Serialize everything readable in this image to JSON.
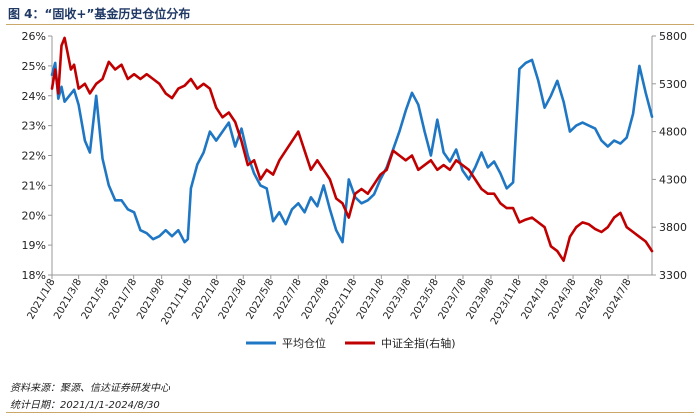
{
  "header": {
    "title": "图 4：“固收+”基金历史仓位分布"
  },
  "footer": {
    "source": "资料来源：聚源、信达证券研发中心",
    "date_range": "统计日期：2021/1/1-2024/8/30"
  },
  "colors": {
    "avg_position": "#1f77c4",
    "csi_all": "#c00000"
  },
  "chart_data": {
    "type": "line",
    "x_ticks": [
      "2021/1/8",
      "2021/3/8",
      "2021/5/8",
      "2021/7/8",
      "2021/9/8",
      "2021/11/8",
      "2022/1/8",
      "2022/3/8",
      "2022/5/8",
      "2022/7/8",
      "2022/9/8",
      "2022/11/8",
      "2023/1/8",
      "2023/3/8",
      "2023/5/8",
      "2023/7/8",
      "2023/9/8",
      "2023/11/8",
      "2024/1/8",
      "2024/3/8",
      "2024/5/8",
      "2024/7/8"
    ],
    "y_left": {
      "ticks": [
        "26%",
        "25%",
        "24%",
        "23%",
        "22%",
        "21%",
        "20%",
        "19%",
        "18%"
      ],
      "range": [
        18,
        26
      ],
      "unit": "%"
    },
    "y_right": {
      "ticks": [
        "5800",
        "5300",
        "4800",
        "4300",
        "3800",
        "3300"
      ],
      "range": [
        3300,
        5800
      ]
    },
    "legend": [
      "平均仓位",
      "中证全指(右轴)"
    ],
    "legend_position": "bottom",
    "grid": false,
    "series": [
      {
        "name": "平均仓位",
        "axis": "left",
        "x": [
          "2021/1/8",
          "2021/1/15",
          "2021/1/22",
          "2021/1/29",
          "2021/2/5",
          "2021/2/26",
          "2021/3/8",
          "2021/3/22",
          "2021/4/2",
          "2021/4/16",
          "2021/4/30",
          "2021/5/14",
          "2021/5/28",
          "2021/6/11",
          "2021/6/25",
          "2021/7/9",
          "2021/7/23",
          "2021/8/6",
          "2021/8/20",
          "2021/9/3",
          "2021/9/17",
          "2021/10/1",
          "2021/10/15",
          "2021/10/29",
          "2021/11/5",
          "2021/11/12",
          "2021/11/26",
          "2021/12/10",
          "2021/12/24",
          "2022/1/7",
          "2022/1/21",
          "2022/2/4",
          "2022/2/18",
          "2022/3/4",
          "2022/3/18",
          "2022/4/1",
          "2022/4/15",
          "2022/4/29",
          "2022/5/13",
          "2022/5/27",
          "2022/6/10",
          "2022/6/24",
          "2022/7/8",
          "2022/7/22",
          "2022/8/5",
          "2022/8/19",
          "2022/9/2",
          "2022/9/16",
          "2022/9/30",
          "2022/10/14",
          "2022/10/28",
          "2022/11/11",
          "2022/11/25",
          "2022/12/9",
          "2022/12/23",
          "2023/1/6",
          "2023/1/20",
          "2023/2/3",
          "2023/2/17",
          "2023/3/3",
          "2023/3/17",
          "2023/3/31",
          "2023/4/14",
          "2023/4/28",
          "2023/5/12",
          "2023/5/26",
          "2023/6/9",
          "2023/6/23",
          "2023/7/7",
          "2023/7/21",
          "2023/8/4",
          "2023/8/18",
          "2023/9/1",
          "2023/9/15",
          "2023/9/29",
          "2023/10/13",
          "2023/10/27",
          "2023/11/10",
          "2023/11/24",
          "2023/12/8",
          "2023/12/22",
          "2024/1/5",
          "2024/1/19",
          "2024/2/2",
          "2024/2/16",
          "2024/3/1",
          "2024/3/15",
          "2024/3/29",
          "2024/4/12",
          "2024/4/26",
          "2024/5/10",
          "2024/5/24",
          "2024/6/7",
          "2024/6/21",
          "2024/7/5",
          "2024/7/19",
          "2024/8/2",
          "2024/8/16",
          "2024/8/30"
        ],
        "values": [
          24.7,
          25.1,
          23.9,
          24.3,
          23.8,
          24.2,
          23.7,
          22.5,
          22.1,
          24.0,
          21.9,
          21.0,
          20.5,
          20.5,
          20.2,
          20.1,
          19.5,
          19.4,
          19.2,
          19.3,
          19.5,
          19.3,
          19.5,
          19.1,
          19.2,
          20.9,
          21.7,
          22.1,
          22.8,
          22.5,
          22.8,
          23.1,
          22.3,
          22.9,
          22.0,
          21.4,
          21.0,
          20.9,
          19.8,
          20.1,
          19.7,
          20.2,
          20.4,
          20.1,
          20.6,
          20.3,
          21.0,
          20.2,
          19.5,
          19.1,
          21.2,
          20.6,
          20.4,
          20.5,
          20.7,
          21.2,
          21.6,
          22.2,
          22.8,
          23.5,
          24.1,
          23.7,
          22.8,
          22.0,
          23.2,
          22.1,
          21.8,
          22.2,
          21.5,
          21.2,
          21.6,
          22.1,
          21.6,
          21.8,
          21.4,
          20.9,
          21.1,
          24.9,
          25.1,
          25.2,
          24.5,
          23.6,
          24.0,
          24.5,
          23.8,
          22.8,
          23.0,
          23.1,
          23.0,
          22.9,
          22.5,
          22.3,
          22.5,
          22.4,
          22.6,
          23.4,
          25.0,
          24.1,
          23.3
        ]
      },
      {
        "name": "中证全指(右轴)",
        "axis": "right",
        "x": [
          "2021/1/8",
          "2021/1/15",
          "2021/1/22",
          "2021/1/29",
          "2021/2/5",
          "2021/2/19",
          "2021/2/26",
          "2021/3/8",
          "2021/3/22",
          "2021/4/2",
          "2021/4/16",
          "2021/4/30",
          "2021/5/14",
          "2021/5/28",
          "2021/6/11",
          "2021/6/25",
          "2021/7/9",
          "2021/7/23",
          "2021/8/6",
          "2021/8/20",
          "2021/9/3",
          "2021/9/17",
          "2021/10/1",
          "2021/10/15",
          "2021/10/29",
          "2021/11/12",
          "2021/11/26",
          "2021/12/10",
          "2021/12/24",
          "2022/1/7",
          "2022/1/21",
          "2022/2/4",
          "2022/2/18",
          "2022/3/4",
          "2022/3/18",
          "2022/4/1",
          "2022/4/15",
          "2022/4/29",
          "2022/5/13",
          "2022/5/27",
          "2022/6/10",
          "2022/6/24",
          "2022/7/8",
          "2022/7/22",
          "2022/8/5",
          "2022/8/19",
          "2022/9/2",
          "2022/9/16",
          "2022/9/30",
          "2022/10/14",
          "2022/10/28",
          "2022/11/11",
          "2022/11/25",
          "2022/12/9",
          "2022/12/23",
          "2023/1/6",
          "2023/1/20",
          "2023/2/3",
          "2023/2/17",
          "2023/3/3",
          "2023/3/17",
          "2023/3/31",
          "2023/4/14",
          "2023/4/28",
          "2023/5/12",
          "2023/5/26",
          "2023/6/9",
          "2023/6/23",
          "2023/7/7",
          "2023/7/21",
          "2023/8/4",
          "2023/8/18",
          "2023/9/1",
          "2023/9/15",
          "2023/9/29",
          "2023/10/13",
          "2023/10/27",
          "2023/11/10",
          "2023/11/24",
          "2023/12/8",
          "2023/12/22",
          "2024/1/5",
          "2024/1/19",
          "2024/2/2",
          "2024/2/16",
          "2024/3/1",
          "2024/3/15",
          "2024/3/29",
          "2024/4/12",
          "2024/4/26",
          "2024/5/10",
          "2024/5/24",
          "2024/6/7",
          "2024/6/21",
          "2024/7/5",
          "2024/7/19",
          "2024/8/2",
          "2024/8/16",
          "2024/8/30"
        ],
        "values": [
          5250,
          5450,
          5200,
          5700,
          5780,
          5450,
          5500,
          5250,
          5300,
          5200,
          5300,
          5350,
          5530,
          5450,
          5500,
          5350,
          5400,
          5350,
          5400,
          5350,
          5300,
          5200,
          5150,
          5250,
          5280,
          5350,
          5250,
          5300,
          5250,
          5050,
          4950,
          5000,
          4900,
          4700,
          4450,
          4500,
          4300,
          4400,
          4350,
          4500,
          4600,
          4700,
          4800,
          4600,
          4400,
          4500,
          4400,
          4300,
          4100,
          4050,
          3900,
          4150,
          4200,
          4150,
          4250,
          4350,
          4400,
          4600,
          4550,
          4500,
          4550,
          4400,
          4450,
          4500,
          4400,
          4450,
          4400,
          4500,
          4450,
          4400,
          4300,
          4200,
          4150,
          4150,
          4050,
          4000,
          4000,
          3850,
          3880,
          3900,
          3850,
          3800,
          3600,
          3550,
          3450,
          3700,
          3800,
          3850,
          3830,
          3780,
          3750,
          3800,
          3900,
          3950,
          3800,
          3750,
          3700,
          3650,
          3550
        ]
      }
    ]
  }
}
